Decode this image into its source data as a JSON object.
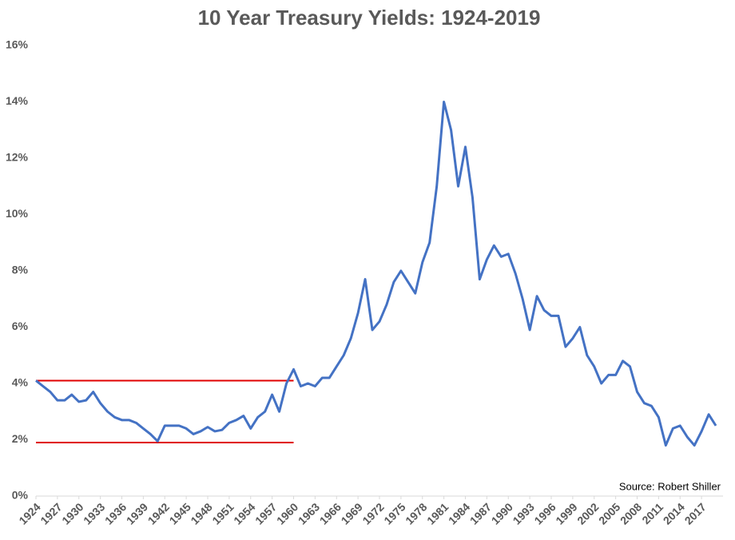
{
  "chart_data": {
    "type": "line",
    "title": "10 Year Treasury Yields: 1924-2019",
    "annotation": "Source: Robert Shiller",
    "x": [
      1924,
      1925,
      1926,
      1927,
      1928,
      1929,
      1930,
      1931,
      1932,
      1933,
      1934,
      1935,
      1936,
      1937,
      1938,
      1939,
      1940,
      1941,
      1942,
      1943,
      1944,
      1945,
      1946,
      1947,
      1948,
      1949,
      1950,
      1951,
      1952,
      1953,
      1954,
      1955,
      1956,
      1957,
      1958,
      1959,
      1960,
      1961,
      1962,
      1963,
      1964,
      1965,
      1966,
      1967,
      1968,
      1969,
      1970,
      1971,
      1972,
      1973,
      1974,
      1975,
      1976,
      1977,
      1978,
      1979,
      1980,
      1981,
      1982,
      1983,
      1984,
      1985,
      1986,
      1987,
      1988,
      1989,
      1990,
      1991,
      1992,
      1993,
      1994,
      1995,
      1996,
      1997,
      1998,
      1999,
      2000,
      2001,
      2002,
      2003,
      2004,
      2005,
      2006,
      2007,
      2008,
      2009,
      2010,
      2011,
      2012,
      2013,
      2014,
      2015,
      2016,
      2017,
      2018,
      2019
    ],
    "series": [
      {
        "name": "10 Year Treasury Yield",
        "color": "#4472c4",
        "values": [
          4.1,
          3.9,
          3.7,
          3.4,
          3.4,
          3.6,
          3.35,
          3.4,
          3.7,
          3.3,
          3.0,
          2.8,
          2.7,
          2.7,
          2.6,
          2.4,
          2.2,
          1.95,
          2.5,
          2.5,
          2.5,
          2.4,
          2.2,
          2.3,
          2.45,
          2.3,
          2.35,
          2.6,
          2.7,
          2.85,
          2.4,
          2.8,
          3.0,
          3.6,
          3.0,
          4.0,
          4.5,
          3.9,
          4.0,
          3.9,
          4.2,
          4.2,
          4.6,
          5.0,
          5.6,
          6.5,
          7.7,
          5.9,
          6.2,
          6.8,
          7.6,
          8.0,
          7.6,
          7.2,
          8.3,
          9.0,
          11.0,
          14.0,
          13.0,
          11.0,
          12.4,
          10.6,
          7.7,
          8.4,
          8.9,
          8.5,
          8.6,
          7.9,
          7.0,
          5.9,
          7.1,
          6.6,
          6.4,
          6.4,
          5.3,
          5.6,
          6.0,
          5.0,
          4.6,
          4.0,
          4.3,
          4.3,
          4.8,
          4.6,
          3.7,
          3.3,
          3.2,
          2.8,
          1.8,
          2.4,
          2.5,
          2.1,
          1.8,
          2.3,
          2.9,
          2.5
        ]
      }
    ],
    "reference_lines": [
      {
        "value": 4.1,
        "color": "#e00000",
        "x_range": [
          1924,
          1960
        ]
      },
      {
        "value": 1.9,
        "color": "#e00000",
        "x_range": [
          1924,
          1960
        ]
      }
    ],
    "xlim": [
      1924,
      2020
    ],
    "xticks": [
      1924,
      1927,
      1930,
      1933,
      1936,
      1939,
      1942,
      1945,
      1948,
      1951,
      1954,
      1957,
      1960,
      1963,
      1966,
      1969,
      1972,
      1975,
      1978,
      1981,
      1984,
      1987,
      1990,
      1993,
      1996,
      1999,
      2002,
      2005,
      2008,
      2011,
      2014,
      2017
    ],
    "ylim": [
      0,
      16
    ],
    "yticks": [
      {
        "value": 0,
        "label": "0%"
      },
      {
        "value": 2,
        "label": "2%"
      },
      {
        "value": 4,
        "label": "4%"
      },
      {
        "value": 6,
        "label": "6%"
      },
      {
        "value": 8,
        "label": "8%"
      },
      {
        "value": 10,
        "label": "10%"
      },
      {
        "value": 12,
        "label": "12%"
      },
      {
        "value": 14,
        "label": "14%"
      },
      {
        "value": 16,
        "label": "16%"
      }
    ],
    "grid": false
  }
}
